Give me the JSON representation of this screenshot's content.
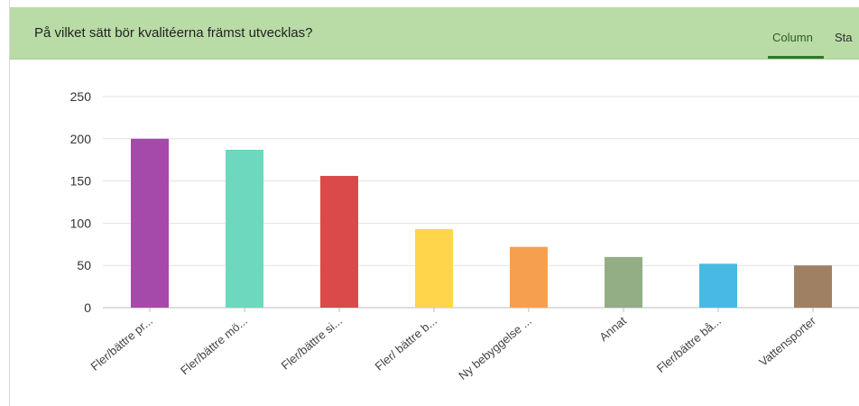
{
  "header": {
    "question": "På vilket sätt bör kvalitéerna främst utvecklas?",
    "tabs": [
      {
        "label": "Column",
        "active": true
      },
      {
        "label": "Sta",
        "active": false
      }
    ]
  },
  "chart_data": {
    "type": "bar",
    "title": "",
    "xlabel": "",
    "ylabel": "",
    "ylim": [
      0,
      250
    ],
    "yticks": [
      0,
      50,
      100,
      150,
      200,
      250
    ],
    "grid": true,
    "categories": [
      "Fler/bättre pr...",
      "Fler/bättre mö...",
      "Fler/bättre si...",
      "Fler/ bättre b...",
      "Ny bebyggelse ...",
      "Annat",
      "Fler/bättre bå...",
      "Vattensporter"
    ],
    "values": [
      200,
      187,
      156,
      93,
      72,
      60,
      52,
      50
    ],
    "colors": [
      "#a54aaa",
      "#6dd8bd",
      "#db4a4a",
      "#ffd54a",
      "#f5a04e",
      "#93ad85",
      "#48b9e3",
      "#a08062"
    ]
  }
}
